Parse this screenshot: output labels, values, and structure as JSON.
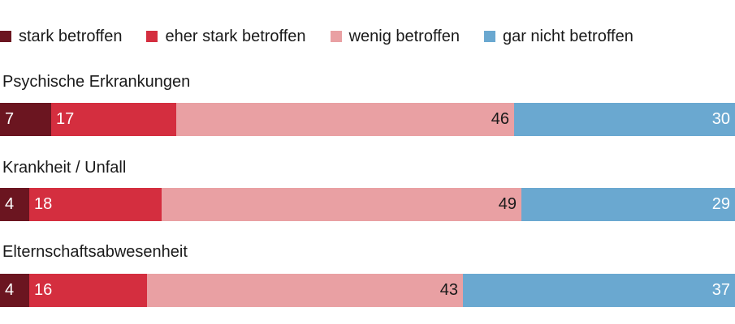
{
  "chart_data": {
    "type": "bar",
    "orientation": "horizontal",
    "stacked": true,
    "categories": [
      "Psychische Erkrankungen",
      "Krankheit / Unfall",
      "Elternschaftsabwesenheit"
    ],
    "series": [
      {
        "name": "stark betroffen",
        "values": [
          7,
          4,
          4
        ],
        "color": "#6b1520",
        "label_color": "#ffffff"
      },
      {
        "name": "eher stark betroffen",
        "values": [
          17,
          18,
          16
        ],
        "color": "#d42e3f",
        "label_color": "#ffffff"
      },
      {
        "name": "wenig betroffen",
        "values": [
          46,
          49,
          43
        ],
        "color": "#e9a0a3",
        "label_color": "#1a1a1a"
      },
      {
        "name": "gar nicht betroffen",
        "values": [
          30,
          29,
          37
        ],
        "color": "#6aa8d0",
        "label_color": "#ffffff"
      }
    ],
    "xlim": [
      0,
      100
    ],
    "legend_position": "top"
  }
}
